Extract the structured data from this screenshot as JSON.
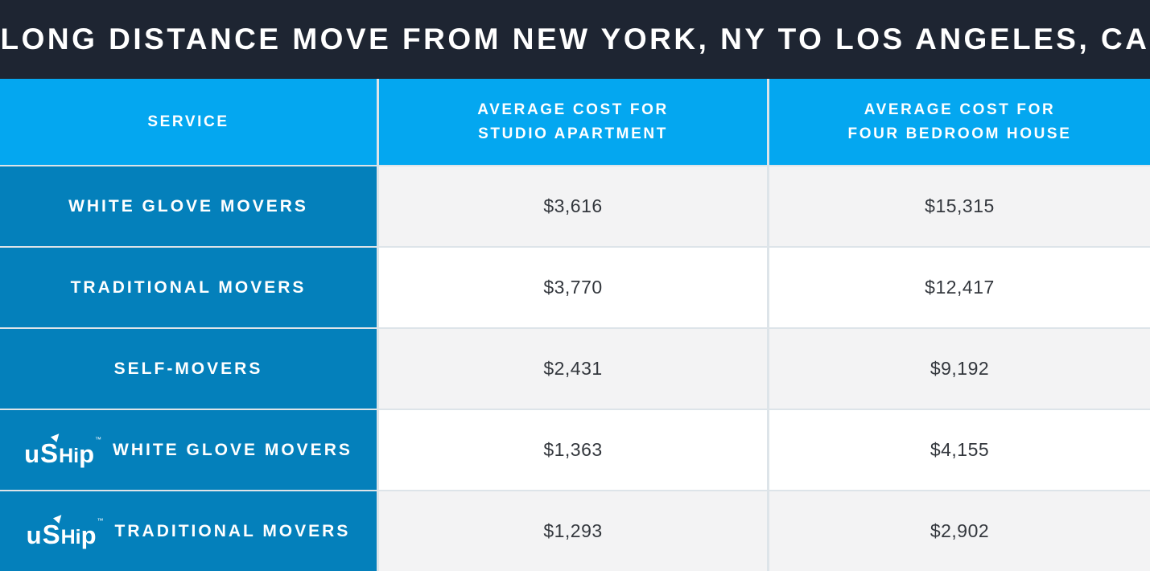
{
  "chart_data": {
    "type": "table",
    "title": "LONG DISTANCE MOVE FROM NEW YORK, NY TO LOS ANGELES, CA",
    "columns": [
      "SERVICE",
      "AVERAGE COST FOR STUDIO APARTMENT",
      "AVERAGE COST FOR FOUR BEDROOM HOUSE"
    ],
    "rows": [
      [
        "WHITE GLOVE MOVERS",
        3616,
        15315
      ],
      [
        "TRADITIONAL MOVERS",
        3770,
        12417
      ],
      [
        "SELF-MOVERS",
        2431,
        9192
      ],
      [
        "uShip WHITE GLOVE MOVERS",
        1363,
        4155
      ],
      [
        "uShip TRADITIONAL MOVERS",
        1293,
        2902
      ]
    ]
  },
  "title": "LONG DISTANCE MOVE FROM NEW YORK, NY TO LOS ANGELES, CA",
  "headers": [
    {
      "line1": "SERVICE"
    },
    {
      "line1": "AVERAGE COST FOR",
      "line2": "STUDIO APARTMENT"
    },
    {
      "line1": "AVERAGE COST FOR",
      "line2": "FOUR BEDROOM HOUSE"
    }
  ],
  "rows": [
    {
      "service": "WHITE GLOVE MOVERS",
      "has_logo": false,
      "studio": "$3,616",
      "four_bedroom": "$15,315"
    },
    {
      "service": "TRADITIONAL MOVERS",
      "has_logo": false,
      "studio": "$3,770",
      "four_bedroom": "$12,417"
    },
    {
      "service": "SELF-MOVERS",
      "has_logo": false,
      "studio": "$2,431",
      "four_bedroom": "$9,192"
    },
    {
      "service": "WHITE GLOVE MOVERS",
      "has_logo": true,
      "studio": "$1,363",
      "four_bedroom": "$4,155"
    },
    {
      "service": "TRADITIONAL MOVERS",
      "has_logo": true,
      "studio": "$1,293",
      "four_bedroom": "$2,902"
    }
  ],
  "logo": {
    "text": "uShip",
    "tm": "™"
  },
  "colors": {
    "title_bg": "#1e2532",
    "header_bg": "#04a7f0",
    "service_bg": "#0480bb",
    "row_shaded_bg": "#f3f3f4",
    "row_plain_bg": "#ffffff",
    "text_light": "#ffffff",
    "text_dark": "#33373d"
  }
}
